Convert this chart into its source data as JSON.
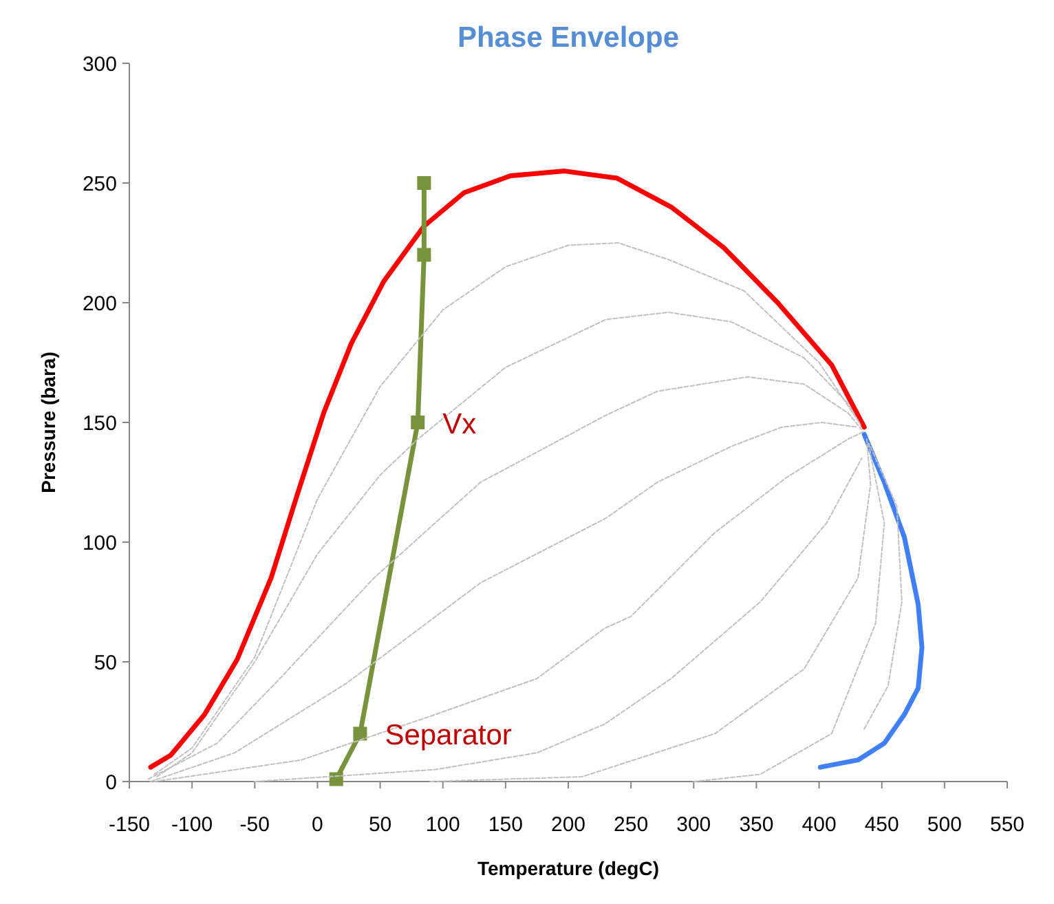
{
  "chart_data": {
    "type": "line",
    "title": "Phase Envelope",
    "xlabel": "Temperature (degC)",
    "ylabel": "Pressure (bara)",
    "xlim": [
      -150,
      550
    ],
    "xticks": [
      -150,
      -100,
      -50,
      0,
      50,
      100,
      150,
      200,
      250,
      300,
      350,
      400,
      450,
      500,
      550
    ],
    "ylim": [
      0,
      300
    ],
    "yticks": [
      0,
      50,
      100,
      150,
      200,
      250,
      300
    ],
    "grid": false,
    "marker": "none",
    "line_style": "solid",
    "series": [
      {
        "color": "#c0c0c0",
        "line_style": "dashed",
        "x": [
          -130,
          -100,
          -50,
          0,
          50,
          100,
          150,
          200,
          240,
          280,
          340,
          400,
          432
        ],
        "values": [
          3,
          14,
          52,
          118,
          165,
          197,
          215,
          224,
          225,
          218,
          205,
          175,
          150
        ]
      },
      {
        "color": "#c0c0c0",
        "line_style": "dashed",
        "x": [
          -128,
          -100,
          -50,
          0,
          50,
          80,
          150,
          230,
          280,
          330,
          388,
          423,
          433
        ],
        "values": [
          2,
          12,
          50,
          95,
          128,
          143,
          173,
          193,
          196,
          192,
          177,
          158,
          149
        ]
      },
      {
        "color": "#c0c0c0",
        "line_style": "dashed",
        "x": [
          -135,
          -80,
          -30,
          45,
          130,
          230,
          271,
          343,
          388,
          423,
          434
        ],
        "values": [
          1,
          16,
          43,
          85,
          125,
          153,
          163,
          169,
          166,
          154,
          147
        ]
      },
      {
        "color": "#c0c0c0",
        "line_style": "dashed",
        "x": [
          -133,
          -66,
          23,
          130,
          230,
          271,
          330,
          370,
          402,
          431
        ],
        "values": [
          0,
          12,
          41,
          83,
          110,
          125,
          140,
          148,
          150,
          148
        ]
      },
      {
        "color": "#c0c0c0",
        "line_style": "dashed",
        "x": [
          -130,
          -13,
          94,
          175,
          229,
          250,
          317,
          374,
          423,
          435
        ],
        "values": [
          0,
          9,
          28,
          43,
          64,
          69,
          104,
          127,
          143,
          146
        ]
      },
      {
        "color": "#c0c0c0",
        "line_style": "dashed",
        "x": [
          -50,
          94,
          175,
          229,
          282,
          353,
          406,
          434
        ],
        "values": [
          0,
          5,
          12,
          24,
          43,
          75,
          108,
          135
        ]
      },
      {
        "color": "#c0c0c0",
        "line_style": "dashed",
        "x": [
          90,
          211,
          317,
          388,
          431,
          441,
          438
        ],
        "values": [
          0,
          2,
          20,
          47,
          85,
          124,
          143
        ]
      },
      {
        "color": "#c0c0c0",
        "line_style": "dashed",
        "x": [
          300,
          353,
          410,
          445,
          452,
          439
        ],
        "values": [
          0,
          3,
          20,
          66,
          108,
          142
        ]
      },
      {
        "color": "#c0c0c0",
        "line_style": "dashed",
        "x": [
          436,
          455,
          466,
          462,
          440
        ],
        "values": [
          22,
          40,
          75,
          115,
          141
        ]
      },
      {
        "color": "#ff0000",
        "x": [
          -133,
          -117,
          -90,
          -64,
          -37,
          -16,
          5,
          27,
          53,
          85,
          117,
          154,
          197,
          239,
          282,
          324,
          367,
          410,
          436
        ],
        "values": [
          6,
          11,
          28,
          51,
          85,
          120,
          154,
          183,
          209,
          232,
          246,
          253,
          255,
          252,
          240,
          223,
          200,
          174,
          148
        ]
      },
      {
        "color": "#3f7ff7",
        "x": [
          436,
          452,
          468,
          479,
          482,
          479,
          468,
          452,
          431,
          401
        ],
        "values": [
          145,
          125,
          102,
          74,
          56,
          39,
          28,
          16,
          9,
          6
        ]
      },
      {
        "color": "#77933c",
        "marker": "square",
        "x": [
          15,
          34,
          80,
          85,
          85
        ],
        "values": [
          1,
          20,
          150,
          220,
          250
        ]
      }
    ],
    "annotations": [
      {
        "text": "Vx",
        "x": 80,
        "y": 150
      },
      {
        "text": "Separator",
        "x": 34,
        "y": 20
      }
    ]
  }
}
